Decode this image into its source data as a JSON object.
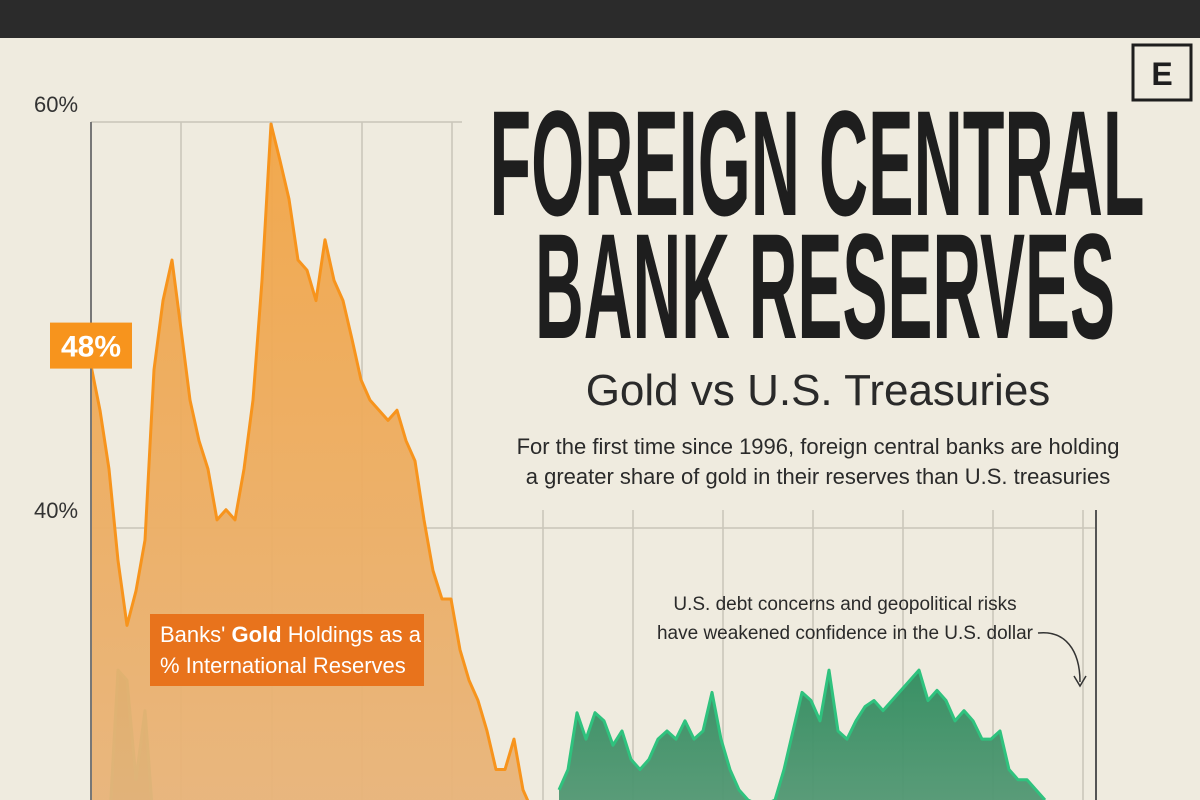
{
  "chart_data": {
    "type": "line",
    "title": [
      "FOREIGN CENTRAL",
      "BANK RESERVES"
    ],
    "subtitle": "Gold vs U.S. Treasuries",
    "description": [
      "For the first time since 1996, foreign central banks are holding",
      "a greater share of gold in their reserves than U.S. treasuries"
    ],
    "annotation": [
      "U.S. debt concerns and geopolitical risks",
      "have weakened confidence in the U.S. dollar"
    ],
    "series_label": [
      "Banks' ",
      "Gold",
      " Holdings as a",
      "% International Reserves"
    ],
    "logo": "E",
    "ylim": [
      26.6,
      60
    ],
    "yticks": [
      {
        "value": 40,
        "label": "40%"
      },
      {
        "value": 60,
        "label": "60%"
      }
    ],
    "categories": [
      null,
      null,
      null,
      null,
      null,
      null,
      null,
      null,
      null,
      null,
      null,
      null,
      null,
      null,
      null,
      null,
      null,
      null,
      null,
      null,
      null,
      null,
      null,
      null,
      null,
      null,
      null,
      null,
      null,
      null,
      null,
      null,
      null,
      null,
      null,
      null,
      null,
      null,
      null,
      null,
      null,
      null,
      null,
      null,
      null,
      null,
      null,
      null,
      null,
      null,
      null,
      null,
      null,
      null,
      null,
      null,
      null,
      null,
      null,
      null,
      null,
      null,
      null,
      null,
      null,
      null,
      null,
      null,
      null,
      null,
      null,
      null,
      null,
      null,
      null,
      null,
      null,
      null,
      null,
      null,
      null,
      null,
      null,
      null,
      null,
      null,
      null,
      null,
      null,
      null,
      null,
      null,
      null,
      null,
      null,
      null,
      null,
      null,
      null,
      null,
      null,
      null,
      null,
      null,
      null,
      null,
      null,
      null,
      null,
      null,
      null
    ],
    "series": [
      {
        "color": "#f7941d",
        "values": [
          48,
          45.8,
          42.9,
          38.4,
          35.2,
          36.9,
          39.4,
          47.8,
          51.2,
          53.2,
          49.8,
          46.3,
          44.3,
          42.9,
          40.4,
          40.9,
          40.4,
          42.9,
          46.3,
          52.2,
          59.9,
          58.1,
          56.2,
          53.2,
          52.7,
          51.2,
          54.2,
          52.2,
          51.2,
          49.3,
          47.3,
          46.3,
          45.8,
          45.3,
          45.8,
          44.3,
          43.3,
          40.4,
          37.9,
          36.5,
          36.5,
          34.0,
          32.5,
          31.5,
          30.0,
          28.1,
          28.1,
          29.6,
          27.1,
          26.1,
          null,
          null,
          null,
          null,
          null,
          null,
          null,
          null,
          null,
          null,
          null,
          null,
          null,
          null,
          null,
          null,
          null,
          null,
          null,
          null,
          null,
          null,
          null,
          null,
          null,
          null,
          null,
          null,
          null,
          null,
          null,
          null,
          null,
          null,
          null,
          null,
          null,
          null,
          null,
          null,
          null,
          null,
          null,
          null,
          null,
          null,
          null,
          null,
          null,
          null,
          null,
          null,
          null,
          null,
          null,
          null,
          null,
          null,
          null,
          null,
          null
        ],
        "value_labels": [
          "48%",
          null,
          null,
          null,
          null,
          null,
          null,
          null,
          null,
          null,
          null,
          null,
          null,
          null,
          null,
          null,
          null,
          null,
          null,
          null,
          null,
          null,
          null,
          null,
          null,
          null,
          null,
          null,
          null,
          null,
          null,
          null,
          null,
          null,
          null,
          null,
          null,
          null,
          null,
          null,
          null,
          null,
          null,
          null,
          null,
          null,
          null,
          null,
          null,
          null,
          null,
          null,
          null,
          null,
          null,
          null,
          null,
          null,
          null,
          null,
          null,
          null,
          null,
          null,
          null,
          null,
          null,
          null,
          null,
          null,
          null,
          null,
          null,
          null,
          null,
          null,
          null,
          null,
          null,
          null,
          null,
          null,
          null,
          null,
          null,
          null,
          null,
          null,
          null,
          null,
          null,
          null,
          null,
          null,
          null,
          null,
          null,
          null,
          null,
          null,
          null,
          null,
          null,
          null,
          null,
          null,
          null,
          null,
          null,
          null,
          null
        ]
      },
      {
        "color": "#2fc27e",
        "values": [
          null,
          null,
          25,
          33.0,
          32.5,
          27.6,
          31.0,
          25,
          null,
          null,
          null,
          null,
          null,
          null,
          null,
          null,
          null,
          null,
          null,
          null,
          null,
          null,
          null,
          null,
          null,
          null,
          null,
          null,
          null,
          null,
          null,
          null,
          null,
          null,
          null,
          null,
          null,
          null,
          null,
          null,
          null,
          null,
          null,
          null,
          null,
          null,
          null,
          null,
          null,
          null,
          null,
          null,
          27.1,
          28.1,
          30.9,
          29.6,
          30.9,
          30.5,
          29.3,
          30.0,
          28.6,
          28.1,
          28.6,
          29.6,
          30.0,
          29.6,
          30.5,
          29.6,
          30.0,
          31.9,
          29.6,
          28.1,
          27.1,
          26.6,
          26.4,
          26.4,
          26.6,
          28.1,
          30.0,
          31.9,
          31.5,
          30.5,
          33.0,
          30.0,
          29.6,
          30.5,
          31.2,
          31.5,
          31.0,
          31.5,
          32.0,
          32.5,
          33.0,
          31.5,
          32.0,
          31.5,
          30.5,
          31.0,
          30.5,
          29.6,
          29.6,
          30.0,
          28.1,
          27.6,
          27.6,
          27.1,
          26.6,
          null,
          null,
          null,
          null
        ]
      }
    ]
  }
}
